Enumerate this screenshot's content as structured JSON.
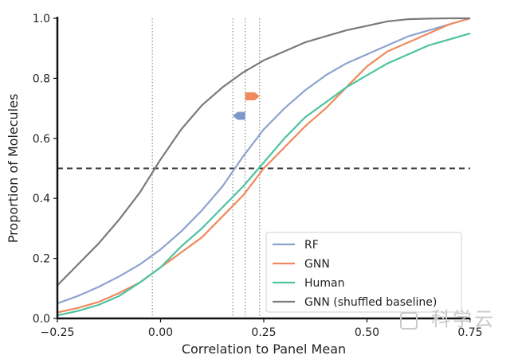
{
  "chart_data": {
    "type": "line",
    "xlabel": "Correlation to Panel Mean",
    "ylabel": "Proportion of Molecules",
    "xlim": [
      -0.25,
      0.75
    ],
    "ylim": [
      0.0,
      1.0
    ],
    "xticks": [
      -0.25,
      0.0,
      0.25,
      0.5,
      0.75
    ],
    "xtick_labels": [
      "−0.25",
      "0.00",
      "0.25",
      "0.50",
      "0.75"
    ],
    "yticks": [
      0.0,
      0.2,
      0.4,
      0.6,
      0.8,
      1.0
    ],
    "ytick_labels": [
      "0.0",
      "0.2",
      "0.4",
      "0.6",
      "0.8",
      "1.0"
    ],
    "legend_position": "bottom-right",
    "hline": {
      "y": 0.5,
      "style": "dashed",
      "color": "#333333"
    },
    "vlines": [
      -0.02,
      0.175,
      0.205,
      0.24
    ],
    "arrows": [
      {
        "from": 0.205,
        "to": 0.24,
        "y": 0.74,
        "color": "#ee8a5c",
        "direction": "right"
      },
      {
        "from": 0.205,
        "to": 0.175,
        "y": 0.675,
        "color": "#7d99cc",
        "direction": "left"
      }
    ],
    "series": [
      {
        "name": "RF",
        "color": "#8ea2d0",
        "x": [
          -0.25,
          -0.2,
          -0.15,
          -0.1,
          -0.05,
          0.0,
          0.05,
          0.1,
          0.15,
          0.2,
          0.25,
          0.3,
          0.35,
          0.4,
          0.45,
          0.5,
          0.55,
          0.6,
          0.65,
          0.7,
          0.75
        ],
        "y": [
          0.05,
          0.075,
          0.105,
          0.14,
          0.18,
          0.23,
          0.29,
          0.36,
          0.44,
          0.54,
          0.63,
          0.7,
          0.76,
          0.81,
          0.85,
          0.88,
          0.91,
          0.94,
          0.96,
          0.98,
          1.0
        ]
      },
      {
        "name": "GNN",
        "color": "#ee8a5c",
        "x": [
          -0.25,
          -0.2,
          -0.15,
          -0.1,
          -0.05,
          0.0,
          0.05,
          0.1,
          0.15,
          0.2,
          0.25,
          0.3,
          0.35,
          0.4,
          0.45,
          0.5,
          0.55,
          0.6,
          0.65,
          0.7,
          0.75
        ],
        "y": [
          0.02,
          0.035,
          0.055,
          0.085,
          0.12,
          0.17,
          0.22,
          0.27,
          0.34,
          0.41,
          0.5,
          0.57,
          0.64,
          0.7,
          0.77,
          0.84,
          0.89,
          0.92,
          0.95,
          0.98,
          1.0
        ]
      },
      {
        "name": "Human",
        "color": "#4cc3a1",
        "x": [
          -0.25,
          -0.2,
          -0.15,
          -0.1,
          -0.05,
          0.0,
          0.05,
          0.1,
          0.15,
          0.2,
          0.25,
          0.3,
          0.35,
          0.4,
          0.45,
          0.5,
          0.55,
          0.6,
          0.65,
          0.7,
          0.75
        ],
        "y": [
          0.01,
          0.025,
          0.045,
          0.075,
          0.12,
          0.17,
          0.24,
          0.3,
          0.37,
          0.44,
          0.52,
          0.6,
          0.67,
          0.72,
          0.77,
          0.81,
          0.85,
          0.88,
          0.91,
          0.93,
          0.95
        ]
      },
      {
        "name": "GNN (shuffled baseline)",
        "color": "#7a7a7a",
        "x": [
          -0.25,
          -0.2,
          -0.15,
          -0.1,
          -0.05,
          0.0,
          0.05,
          0.1,
          0.15,
          0.2,
          0.25,
          0.3,
          0.35,
          0.4,
          0.45,
          0.5,
          0.55,
          0.6,
          0.65,
          0.7,
          0.75
        ],
        "y": [
          0.11,
          0.18,
          0.25,
          0.33,
          0.42,
          0.53,
          0.63,
          0.71,
          0.77,
          0.82,
          0.86,
          0.89,
          0.92,
          0.94,
          0.96,
          0.975,
          0.99,
          0.997,
          0.999,
          1.0,
          1.0
        ]
      }
    ]
  },
  "watermark": "科学云"
}
